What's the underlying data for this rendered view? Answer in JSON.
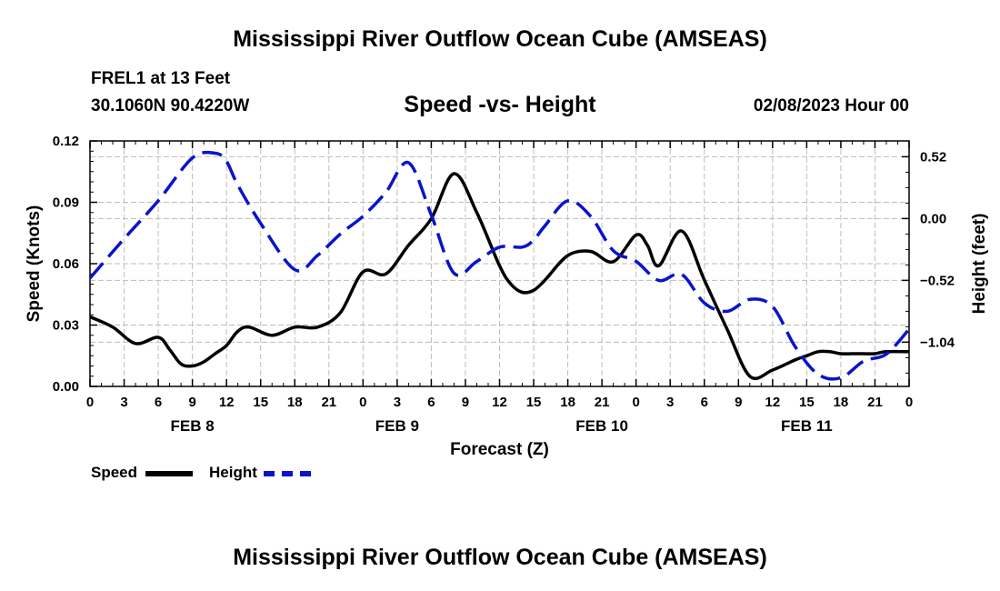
{
  "page": {
    "title_top": "Mississippi River Outflow Ocean Cube (AMSEAS)",
    "title_bottom": "Mississippi River Outflow Ocean Cube (AMSEAS)",
    "station": "FREL1 at 13 Feet",
    "coords": "30.1060N  90.4220W",
    "date": "02/08/2023 Hour 00"
  },
  "legend": {
    "speed_label": "Speed",
    "height_label": "Height"
  },
  "colors": {
    "speed": "#000000",
    "height": "#0a14c8",
    "grid": "#bdbdbd"
  },
  "chart_data": {
    "type": "line",
    "title": "Speed -vs- Height",
    "xlabel": "Forecast (Z)",
    "ylabel": "Speed (Knots)",
    "y2label": "Height (feet)",
    "x_unit": "hours since 02/08 00Z",
    "xlim": [
      0,
      72
    ],
    "ylim": [
      0,
      0.12
    ],
    "y2lim": [
      -1.412,
      0.653
    ],
    "x_ticks": [
      0,
      3,
      6,
      9,
      12,
      15,
      18,
      21,
      24,
      27,
      30,
      33,
      36,
      39,
      42,
      45,
      48,
      51,
      54,
      57,
      60,
      63,
      66,
      69,
      72
    ],
    "x_tick_labels": [
      "0",
      "3",
      "6",
      "9",
      "12",
      "15",
      "18",
      "21",
      "0",
      "3",
      "6",
      "9",
      "12",
      "15",
      "18",
      "21",
      "0",
      "3",
      "6",
      "9",
      "12",
      "15",
      "18",
      "21",
      "0"
    ],
    "day_labels": [
      {
        "x": 9,
        "label": "FEB 8"
      },
      {
        "x": 27,
        "label": "FEB 9"
      },
      {
        "x": 45,
        "label": "FEB 10"
      },
      {
        "x": 63,
        "label": "FEB 11"
      }
    ],
    "y_ticks": [
      0,
      0.03,
      0.06,
      0.09,
      0.12
    ],
    "y_tick_labels": [
      "0.00",
      "0.03",
      "0.06",
      "0.09",
      "0.12"
    ],
    "y2_ticks": [
      0.52,
      0.0,
      -0.52,
      -1.04
    ],
    "y2_tick_labels": [
      "0.52",
      "0.00",
      "−0.52",
      "−1.04"
    ],
    "series": [
      {
        "name": "Speed",
        "axis": "left",
        "style": "solid",
        "x": [
          0,
          2,
          4,
          6,
          7,
          8,
          9,
          10,
          11,
          12,
          13,
          14,
          16,
          18,
          20,
          22,
          24,
          26,
          28,
          30,
          32,
          34,
          36,
          37,
          38,
          39,
          40,
          42,
          44,
          46,
          48,
          49,
          50,
          52,
          54,
          56,
          58,
          60,
          62,
          63,
          64,
          65,
          66,
          67,
          68,
          69,
          70,
          72
        ],
        "values": [
          0.034,
          0.029,
          0.021,
          0.024,
          0.018,
          0.011,
          0.01,
          0.012,
          0.016,
          0.02,
          0.027,
          0.029,
          0.025,
          0.029,
          0.029,
          0.036,
          0.056,
          0.055,
          0.069,
          0.082,
          0.104,
          0.085,
          0.059,
          0.05,
          0.046,
          0.047,
          0.052,
          0.064,
          0.066,
          0.061,
          0.074,
          0.069,
          0.059,
          0.076,
          0.052,
          0.028,
          0.005,
          0.008,
          0.013,
          0.015,
          0.017,
          0.017,
          0.016,
          0.016,
          0.016,
          0.016,
          0.017,
          0.017
        ]
      },
      {
        "name": "Height",
        "axis": "right",
        "style": "dashed",
        "x": [
          0,
          3,
          6,
          9,
          11,
          12,
          13,
          15,
          18,
          20,
          22,
          24,
          26,
          28,
          30,
          32,
          34,
          36,
          38,
          39,
          40,
          42,
          44,
          46,
          48,
          50,
          52,
          54,
          56,
          58,
          60,
          62,
          64,
          66,
          68,
          70,
          72
        ],
        "values": [
          -0.5,
          -0.17,
          0.15,
          0.51,
          0.55,
          0.48,
          0.28,
          -0.04,
          -0.43,
          -0.31,
          -0.13,
          0.02,
          0.22,
          0.47,
          0.03,
          -0.46,
          -0.36,
          -0.24,
          -0.24,
          -0.18,
          -0.06,
          0.15,
          0.02,
          -0.27,
          -0.36,
          -0.52,
          -0.47,
          -0.71,
          -0.78,
          -0.68,
          -0.74,
          -1.08,
          -1.31,
          -1.34,
          -1.2,
          -1.14,
          -0.93
        ]
      }
    ]
  }
}
